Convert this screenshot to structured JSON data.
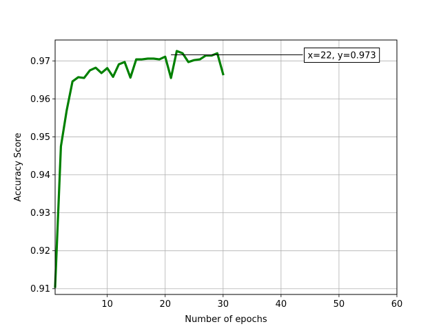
{
  "chart_data": {
    "type": "line",
    "title": "",
    "xlabel": "Number of epochs",
    "ylabel": "Accuracy Score",
    "xlim": [
      1,
      60
    ],
    "ylim": [
      0.9085,
      0.9755
    ],
    "x_ticks": [
      10,
      20,
      30,
      40,
      50,
      60
    ],
    "y_ticks": [
      0.91,
      0.92,
      0.93,
      0.94,
      0.95,
      0.96,
      0.97
    ],
    "x_tick_labels": [
      "10",
      "20",
      "30",
      "40",
      "50",
      "60"
    ],
    "y_tick_labels": [
      "0.91",
      "0.92",
      "0.93",
      "0.94",
      "0.95",
      "0.96",
      "0.97"
    ],
    "grid": true,
    "line_color": "#008000",
    "series": [
      {
        "x": [
          1,
          2,
          3,
          4,
          5,
          6,
          7,
          8,
          9,
          10,
          11,
          12,
          13,
          14,
          15,
          16,
          17,
          18,
          19,
          20,
          21,
          22,
          23,
          24,
          25,
          26,
          27,
          28,
          29,
          30
        ],
        "values": [
          0.9105,
          0.9475,
          0.957,
          0.9646,
          0.9657,
          0.9655,
          0.9675,
          0.9682,
          0.9668,
          0.9681,
          0.9658,
          0.9691,
          0.9697,
          0.9656,
          0.9704,
          0.9704,
          0.9706,
          0.9706,
          0.9704,
          0.9711,
          0.9655,
          0.9726,
          0.972,
          0.9697,
          0.9702,
          0.9704,
          0.9714,
          0.9714,
          0.972,
          0.9665
        ]
      }
    ],
    "annotation": {
      "text": "x=22, y=0.973",
      "point_x": 21,
      "point_y": 0.9716,
      "text_x": 44,
      "text_y": 0.9716
    }
  }
}
